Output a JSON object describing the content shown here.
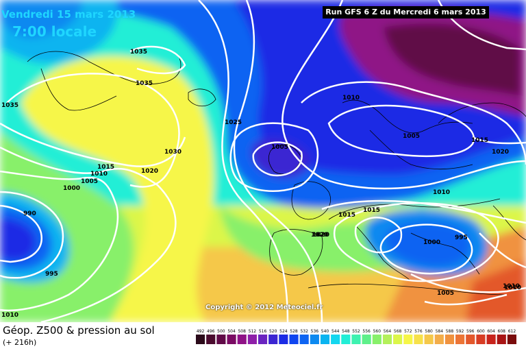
{
  "header": {
    "valid_date": "Vendredi 15 mars 2013",
    "valid_time": "7:00 locale",
    "run_info": "Run GFS 6 Z du Mercredi 6 mars 2013"
  },
  "copyright": "Copyright © 2012 Meteociel.fr",
  "footer": {
    "title": "Géop. Z500 & pression au sol",
    "subtitle": "(+ 216h)"
  },
  "legend": {
    "values": [
      "492",
      "496",
      "500",
      "504",
      "508",
      "512",
      "516",
      "520",
      "524",
      "528",
      "532",
      "536",
      "540",
      "544",
      "548",
      "552",
      "556",
      "560",
      "564",
      "568",
      "572",
      "576",
      "580",
      "584",
      "588",
      "592",
      "596",
      "600",
      "604",
      "608",
      "612"
    ],
    "colors": [
      "#2b0a1a",
      "#4a0b2e",
      "#600a47",
      "#7a0b63",
      "#8f1286",
      "#8e1fa8",
      "#6a24c0",
      "#3b25d2",
      "#1b2be5",
      "#0f45f0",
      "#0e64f2",
      "#0d89f0",
      "#0ab4f0",
      "#14d7ef",
      "#22eed6",
      "#3ef2b0",
      "#5ff08a",
      "#88f06a",
      "#b4f05a",
      "#dcf64a",
      "#f6f648",
      "#f7e14a",
      "#f5c84a",
      "#f3ad4a",
      "#f0923f",
      "#ec7536",
      "#e3582c",
      "#d83d24",
      "#c8241c",
      "#a91515",
      "#7a0c0c"
    ]
  },
  "isobars": [
    {
      "text": "1035"
    },
    {
      "text": "1035"
    },
    {
      "text": "1035"
    },
    {
      "text": "1030"
    },
    {
      "text": "1025"
    },
    {
      "text": "1020"
    },
    {
      "text": "1015"
    },
    {
      "text": "1010"
    },
    {
      "text": "1005"
    },
    {
      "text": "1000"
    },
    {
      "text": "990"
    },
    {
      "text": "995"
    },
    {
      "text": "1010"
    },
    {
      "text": "1005"
    },
    {
      "text": "1010"
    },
    {
      "text": "1005"
    },
    {
      "text": "1015"
    },
    {
      "text": "1020"
    },
    {
      "text": "1010"
    },
    {
      "text": "1015"
    },
    {
      "text": "1015"
    },
    {
      "text": "1020"
    },
    {
      "text": "1000"
    },
    {
      "text": "995"
    },
    {
      "text": "1005"
    },
    {
      "text": "1010"
    },
    {
      "text": "1010"
    },
    {
      "text": "1020"
    }
  ]
}
